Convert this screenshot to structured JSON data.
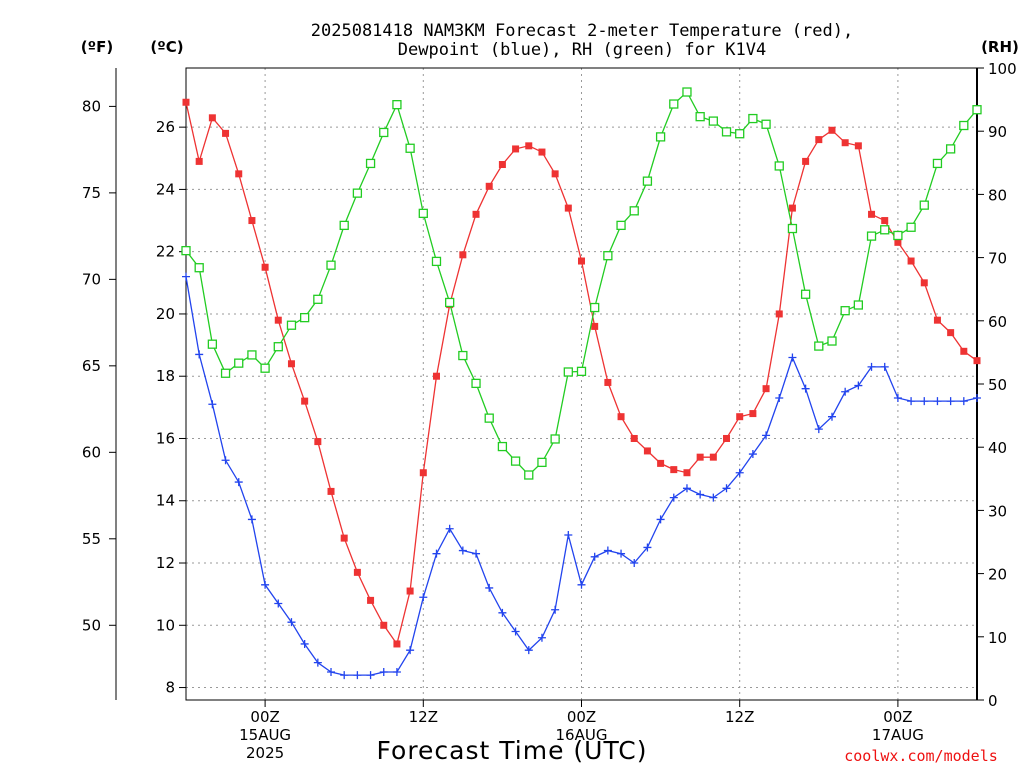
{
  "title": {
    "line1": "2025081418 NAM3KM Forecast 2-meter Temperature (red),",
    "line2": "Dewpoint (blue), RH (green) for K1V4"
  },
  "axis_units": {
    "fahrenheit": "(ºF)",
    "celsius": "(ºC)",
    "rh": "(RH)"
  },
  "xlabel": "Forecast Time (UTC)",
  "credit": "coolwx.com/models",
  "colors": {
    "temperature": "#ee3333",
    "dewpoint": "#2244ee",
    "rh": "#22cc22",
    "credit": "#ee1111"
  },
  "chart_data": {
    "type": "line",
    "x_unit": "hours since 2025-08-14 18Z",
    "x": [
      0,
      1,
      2,
      3,
      4,
      5,
      6,
      7,
      8,
      9,
      10,
      11,
      12,
      13,
      14,
      15,
      16,
      17,
      18,
      19,
      20,
      21,
      22,
      23,
      24,
      25,
      26,
      27,
      28,
      29,
      30,
      31,
      32,
      33,
      34,
      35,
      36,
      37,
      38,
      39,
      40,
      41,
      42,
      43,
      44,
      45,
      46,
      47,
      48,
      49,
      50,
      51,
      52,
      53,
      54,
      55,
      56,
      57,
      58,
      59,
      60
    ],
    "x_ticks": [
      {
        "x": 6,
        "lines": [
          "00Z",
          "15AUG",
          "2025"
        ]
      },
      {
        "x": 18,
        "lines": [
          "12Z"
        ]
      },
      {
        "x": 30,
        "lines": [
          "00Z",
          "16AUG"
        ]
      },
      {
        "x": 42,
        "lines": [
          "12Z"
        ]
      },
      {
        "x": 54,
        "lines": [
          "00Z",
          "17AUG"
        ]
      }
    ],
    "xlim": [
      0,
      60
    ],
    "y_celsius": {
      "ticks": [
        8,
        10,
        12,
        14,
        16,
        18,
        20,
        22,
        24,
        26
      ],
      "lim": [
        7.6,
        27.9
      ]
    },
    "y_fahrenheit": {
      "ticks": [
        50,
        55,
        60,
        65,
        70,
        75,
        80
      ]
    },
    "y_rh": {
      "ticks": [
        0,
        10,
        20,
        30,
        40,
        50,
        60,
        70,
        80,
        90,
        100
      ],
      "lim": [
        0,
        100
      ]
    },
    "grid": true,
    "series": [
      {
        "name": "Temperature",
        "axis": "celsius",
        "marker": "filled-square",
        "values": [
          26.8,
          24.9,
          26.3,
          25.8,
          24.5,
          23.0,
          21.5,
          19.8,
          18.4,
          17.2,
          15.9,
          14.3,
          12.8,
          11.7,
          10.8,
          10.0,
          9.4,
          11.1,
          14.9,
          18.0,
          20.3,
          21.9,
          23.2,
          24.1,
          24.8,
          25.3,
          25.4,
          25.2,
          24.5,
          23.4,
          21.7,
          19.6,
          17.8,
          16.7,
          16.0,
          15.6,
          15.2,
          15.0,
          14.9,
          15.4,
          15.4,
          16.0,
          16.7,
          16.8,
          17.6,
          20.0,
          23.4,
          24.9,
          25.6,
          25.9,
          25.5,
          25.4,
          23.2,
          23.0,
          22.3,
          21.7,
          21.0,
          19.8,
          19.4,
          18.8,
          18.5
        ]
      },
      {
        "name": "Dewpoint",
        "axis": "celsius",
        "marker": "plus",
        "values": [
          21.2,
          18.7,
          17.1,
          15.3,
          14.6,
          13.4,
          11.3,
          10.7,
          10.1,
          9.4,
          8.8,
          8.5,
          8.4,
          8.4,
          8.4,
          8.5,
          8.5,
          9.2,
          10.9,
          12.3,
          13.1,
          12.4,
          12.3,
          11.2,
          10.4,
          9.8,
          9.2,
          9.6,
          10.5,
          12.9,
          11.3,
          12.2,
          12.4,
          12.3,
          12.0,
          12.5,
          13.4,
          14.1,
          14.4,
          14.2,
          14.1,
          14.4,
          14.9,
          15.5,
          16.1,
          17.3,
          18.6,
          17.6,
          16.3,
          16.7,
          17.5,
          17.7,
          18.3,
          18.3,
          17.3,
          17.2,
          17.2,
          17.2,
          17.2,
          17.2,
          17.3
        ]
      },
      {
        "name": "RH",
        "axis": "rh",
        "marker": "open-square",
        "values": [
          71.1,
          68.4,
          56.3,
          51.7,
          53.3,
          54.6,
          52.5,
          55.9,
          59.3,
          60.5,
          63.4,
          68.8,
          75.1,
          80.2,
          84.9,
          89.8,
          94.2,
          87.3,
          77.0,
          69.4,
          62.9,
          54.5,
          50.1,
          44.6,
          40.1,
          37.8,
          35.6,
          37.6,
          41.3,
          51.9,
          52.0,
          62.1,
          70.3,
          75.1,
          77.4,
          82.1,
          89.1,
          94.3,
          96.2,
          92.3,
          91.6,
          89.9,
          89.6,
          92.0,
          91.1,
          84.5,
          74.6,
          64.2,
          56.0,
          56.8,
          61.6,
          62.5,
          73.4,
          74.4,
          73.5,
          74.8,
          78.3,
          84.9,
          87.2,
          90.9,
          93.4
        ]
      }
    ]
  }
}
